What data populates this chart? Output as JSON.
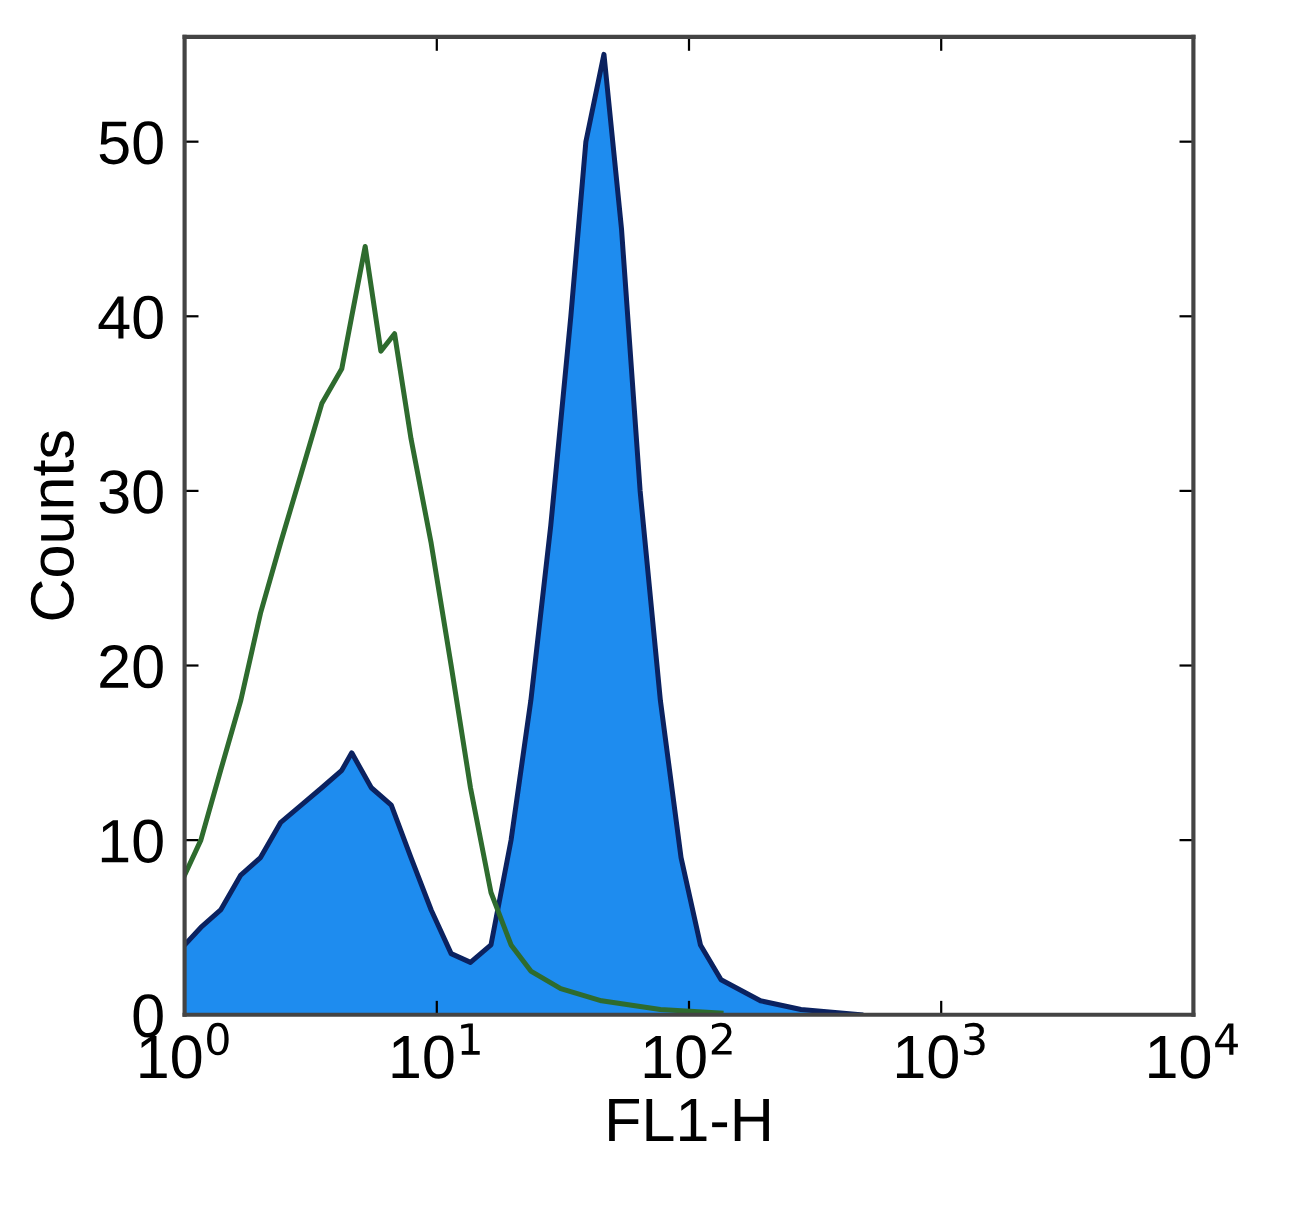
{
  "chart_data": {
    "type": "area",
    "xlabel": "FL1-H",
    "ylabel": "Counts",
    "log": "x",
    "xlim": [
      1,
      10000
    ],
    "xticks": [
      {
        "value": 1,
        "label": "10$^{0}$"
      },
      {
        "value": 10,
        "label": "10$^{1}$"
      },
      {
        "value": 100,
        "label": "10$^{2}$"
      },
      {
        "value": 1000,
        "label": "10$^{3}$"
      },
      {
        "value": 10000,
        "label": "10$^{4}$"
      }
    ],
    "ylim": [
      0,
      56
    ],
    "yticks": [
      0,
      10,
      20,
      30,
      40,
      50
    ],
    "grid": false,
    "legend": false,
    "series": [
      {
        "color": "#1e8cef",
        "x": [
          1.0,
          1.16,
          1.39,
          1.67,
          2.0,
          2.4,
          2.9,
          3.5,
          4.2,
          4.6,
          5.5,
          6.6,
          7.9,
          9.5,
          11.4,
          13.6,
          16.4,
          19.7,
          23.6,
          28.3,
          34,
          39,
          46,
          54,
          64,
          77,
          93,
          111,
          134,
          192,
          278,
          480
        ],
        "values": [
          4,
          5,
          6,
          8,
          9,
          11,
          12,
          13,
          14,
          15,
          13,
          12,
          9,
          6,
          3.5,
          3,
          4,
          10,
          18,
          28,
          40,
          50,
          55,
          45,
          30,
          18,
          9,
          4,
          2,
          0.8,
          0.3,
          0
        ]
      },
      {
        "type": "line",
        "color": "#2e6b2e",
        "x": [
          1.0,
          1.16,
          1.39,
          1.67,
          2.0,
          2.4,
          2.9,
          3.5,
          4.2,
          4.6,
          5.2,
          6.0,
          6.8,
          7.9,
          9.5,
          11.4,
          13.6,
          16.4,
          19.7,
          23.6,
          31,
          45,
          77,
          134
        ],
        "values": [
          8,
          10,
          14,
          18,
          23,
          27,
          31,
          35,
          37,
          40,
          44,
          38,
          39,
          33,
          27,
          20,
          13,
          7,
          4,
          2.5,
          1.5,
          0.8,
          0.3,
          0.1
        ]
      }
    ]
  }
}
